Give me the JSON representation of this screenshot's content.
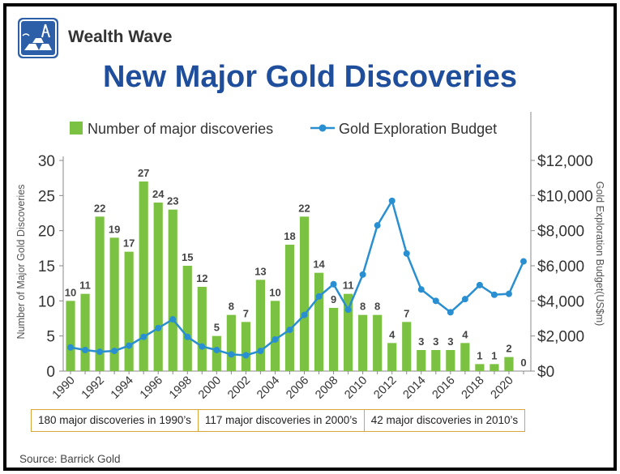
{
  "brand": {
    "name": "Wealth Wave",
    "logo_icon": "gold-bars-oil-rig-icon"
  },
  "chart_data": {
    "type": "bar",
    "title": "New Major Gold Discoveries",
    "x": [
      1990,
      1991,
      1992,
      1993,
      1994,
      1995,
      1996,
      1997,
      1998,
      1999,
      2000,
      2001,
      2002,
      2003,
      2004,
      2005,
      2006,
      2007,
      2008,
      2009,
      2010,
      2011,
      2012,
      2013,
      2014,
      2015,
      2016,
      2017,
      2018,
      2019,
      2020,
      2021
    ],
    "x_tick_labels": [
      "1990",
      "1992",
      "1994",
      "1996",
      "1998",
      "2000",
      "2002",
      "2004",
      "2006",
      "2008",
      "2010",
      "2012",
      "2014",
      "2016",
      "2018",
      "2020"
    ],
    "series": [
      {
        "name": "Number of major discoveries",
        "type": "bar",
        "axis": "left",
        "color": "#7cc242",
        "values": [
          10,
          11,
          22,
          19,
          17,
          27,
          24,
          23,
          15,
          12,
          5,
          8,
          7,
          13,
          10,
          18,
          22,
          14,
          9,
          11,
          8,
          8,
          4,
          7,
          3,
          3,
          3,
          4,
          1,
          1,
          2,
          0
        ]
      },
      {
        "name": "Gold Exploration Budget",
        "type": "line",
        "axis": "right",
        "color": "#2a8fd0",
        "values": [
          1350,
          1200,
          1100,
          1150,
          1450,
          1950,
          2450,
          2950,
          1950,
          1400,
          1200,
          950,
          900,
          1150,
          1800,
          2350,
          3200,
          4250,
          4950,
          3500,
          5500,
          8300,
          9700,
          6700,
          4650,
          4000,
          3350,
          4100,
          4900,
          4350,
          4400,
          6250
        ]
      }
    ],
    "ylabel": "Number of Major Gold Discoveries",
    "ylim": [
      0,
      30
    ],
    "yticks": [
      "0",
      "5",
      "10",
      "15",
      "20",
      "25",
      "30"
    ],
    "y2label": "Gold Exploration Budget(US$m)",
    "y2lim": [
      0,
      12000
    ],
    "y2ticks": [
      "$0",
      "$2,000",
      "$4,000",
      "$6,000",
      "$8,000",
      "$10,000",
      "$12,000"
    ],
    "legend": "top-left",
    "grid": false
  },
  "summary": [
    "180 major discoveries in 1990’s",
    "117 major discoveries in 2000’s",
    "42 major discoveries in 2010’s"
  ],
  "source": "Source: Barrick Gold"
}
